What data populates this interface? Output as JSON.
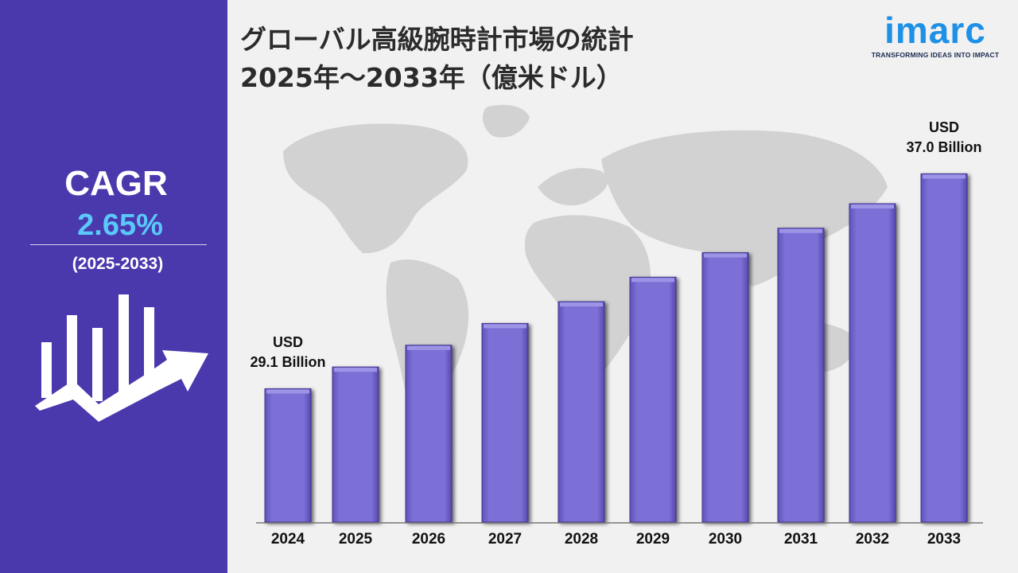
{
  "header": {
    "title_line1": "グローバル高級腕時計市場の統計",
    "title_line2": "2025年～2033年（億米ドル）"
  },
  "brand": {
    "name": "imarc",
    "tagline": "TRANSFORMING IDEAS INTO IMPACT"
  },
  "cagr": {
    "label": "CAGR",
    "value": "2.65%",
    "period": "(2025-2033)"
  },
  "annotations": {
    "first": {
      "currency": "USD",
      "amount": "29.1 Billion"
    },
    "last": {
      "currency": "USD",
      "amount": "37.0 Billion"
    }
  },
  "colors": {
    "panel": "#4a38ad",
    "bar": "#7b6fd6",
    "cagr_value": "#5ac8fa",
    "brand": "#1e90e6"
  },
  "icons": [
    "growth-chart-icon",
    "world-map-background"
  ],
  "chart_data": {
    "type": "bar",
    "title": "グローバル高級腕時計市場の統計 2025年～2033年（億米ドル）",
    "xlabel": "",
    "ylabel": "",
    "categories": [
      "2024",
      "2025",
      "2026",
      "2027",
      "2028",
      "2029",
      "2030",
      "2031",
      "2032",
      "2033"
    ],
    "values": [
      29.1,
      29.9,
      30.7,
      31.5,
      32.3,
      33.2,
      34.1,
      35.0,
      35.9,
      37.0
    ],
    "unit": "USD Billion",
    "ylim": [
      24.2,
      39.0
    ],
    "grid": false,
    "legend": "none"
  }
}
